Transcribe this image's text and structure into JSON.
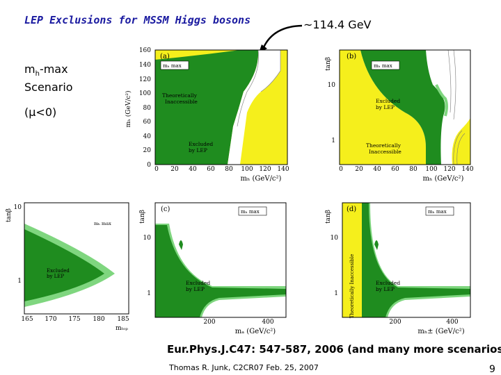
{
  "slide": {
    "title": "LEP Exclusions for MSSM Higgs bosons",
    "mass_annotation": "~114.4 GeV",
    "scenario_main": "m",
    "scenario_sub": "h",
    "scenario_rest": "-max",
    "scenario_line2": "Scenario",
    "mu_condition": "(μ<0)",
    "reference": "Eur.Phys.J.C47: 547-587, 2006 (and many more scenarios)",
    "footer": "Thomas R. Junk, C2CR07 Feb. 25, 2007",
    "page_number": "9"
  },
  "colors": {
    "excluded": "#1f8c1f",
    "theory": "#f5ef1c",
    "light_green": "#7fd67f",
    "title": "#1a1aa0"
  },
  "plots": {
    "a": {
      "panel": "(a)",
      "legend": "mₕ max",
      "label_theory": [
        "Theoretically",
        "Inaccessible"
      ],
      "label_excl": [
        "Excluded",
        "by LEP"
      ],
      "ylabel": "mₕ (GeV/c²)",
      "xlabel": "mₕ (GeV/c²)",
      "yticks": [
        "160",
        "140",
        "120",
        "100",
        "80",
        "60",
        "40",
        "20",
        "0"
      ],
      "xticks": [
        "0",
        "20",
        "40",
        "60",
        "80",
        "100",
        "120",
        "140"
      ]
    },
    "b": {
      "panel": "(b)",
      "legend": "mₕ max",
      "label_excl": [
        "Excluded",
        "by LEP"
      ],
      "label_theory": [
        "Theoretically",
        "Inaccessible"
      ],
      "ylabel": "tanβ",
      "xlabel": "mₕ (GeV/c²)",
      "yticks": [
        "10",
        "1"
      ],
      "xticks": [
        "0",
        "20",
        "40",
        "60",
        "80",
        "100",
        "120",
        "140"
      ]
    },
    "c": {
      "panel": "(c)",
      "legend": "mₕ max",
      "label_excl": [
        "Excluded",
        "by LEP"
      ],
      "ylabel": "tanβ",
      "xlabel": "mₐ (GeV/c²)",
      "yticks": [
        "10",
        "1"
      ],
      "xticks": [
        "200",
        "400"
      ]
    },
    "d": {
      "panel": "(d)",
      "legend": "mₕ max",
      "label_theory": "Theoretically Inaccessible",
      "label_excl": [
        "Excluded",
        "by LEP"
      ],
      "ylabel": "tanβ",
      "xlabel": "mₕ± (GeV/c²)",
      "yticks": [
        "10",
        "1"
      ],
      "xticks": [
        "200",
        "400"
      ]
    },
    "e": {
      "legend": "mₕ max",
      "label_excl": [
        "Excluded",
        "by LEP"
      ],
      "ylabel": "tanβ",
      "xlabel": "mₜₒₚ",
      "yticks": [
        "10",
        "1"
      ],
      "xticks": [
        "165",
        "170",
        "175",
        "180",
        "185"
      ]
    }
  }
}
